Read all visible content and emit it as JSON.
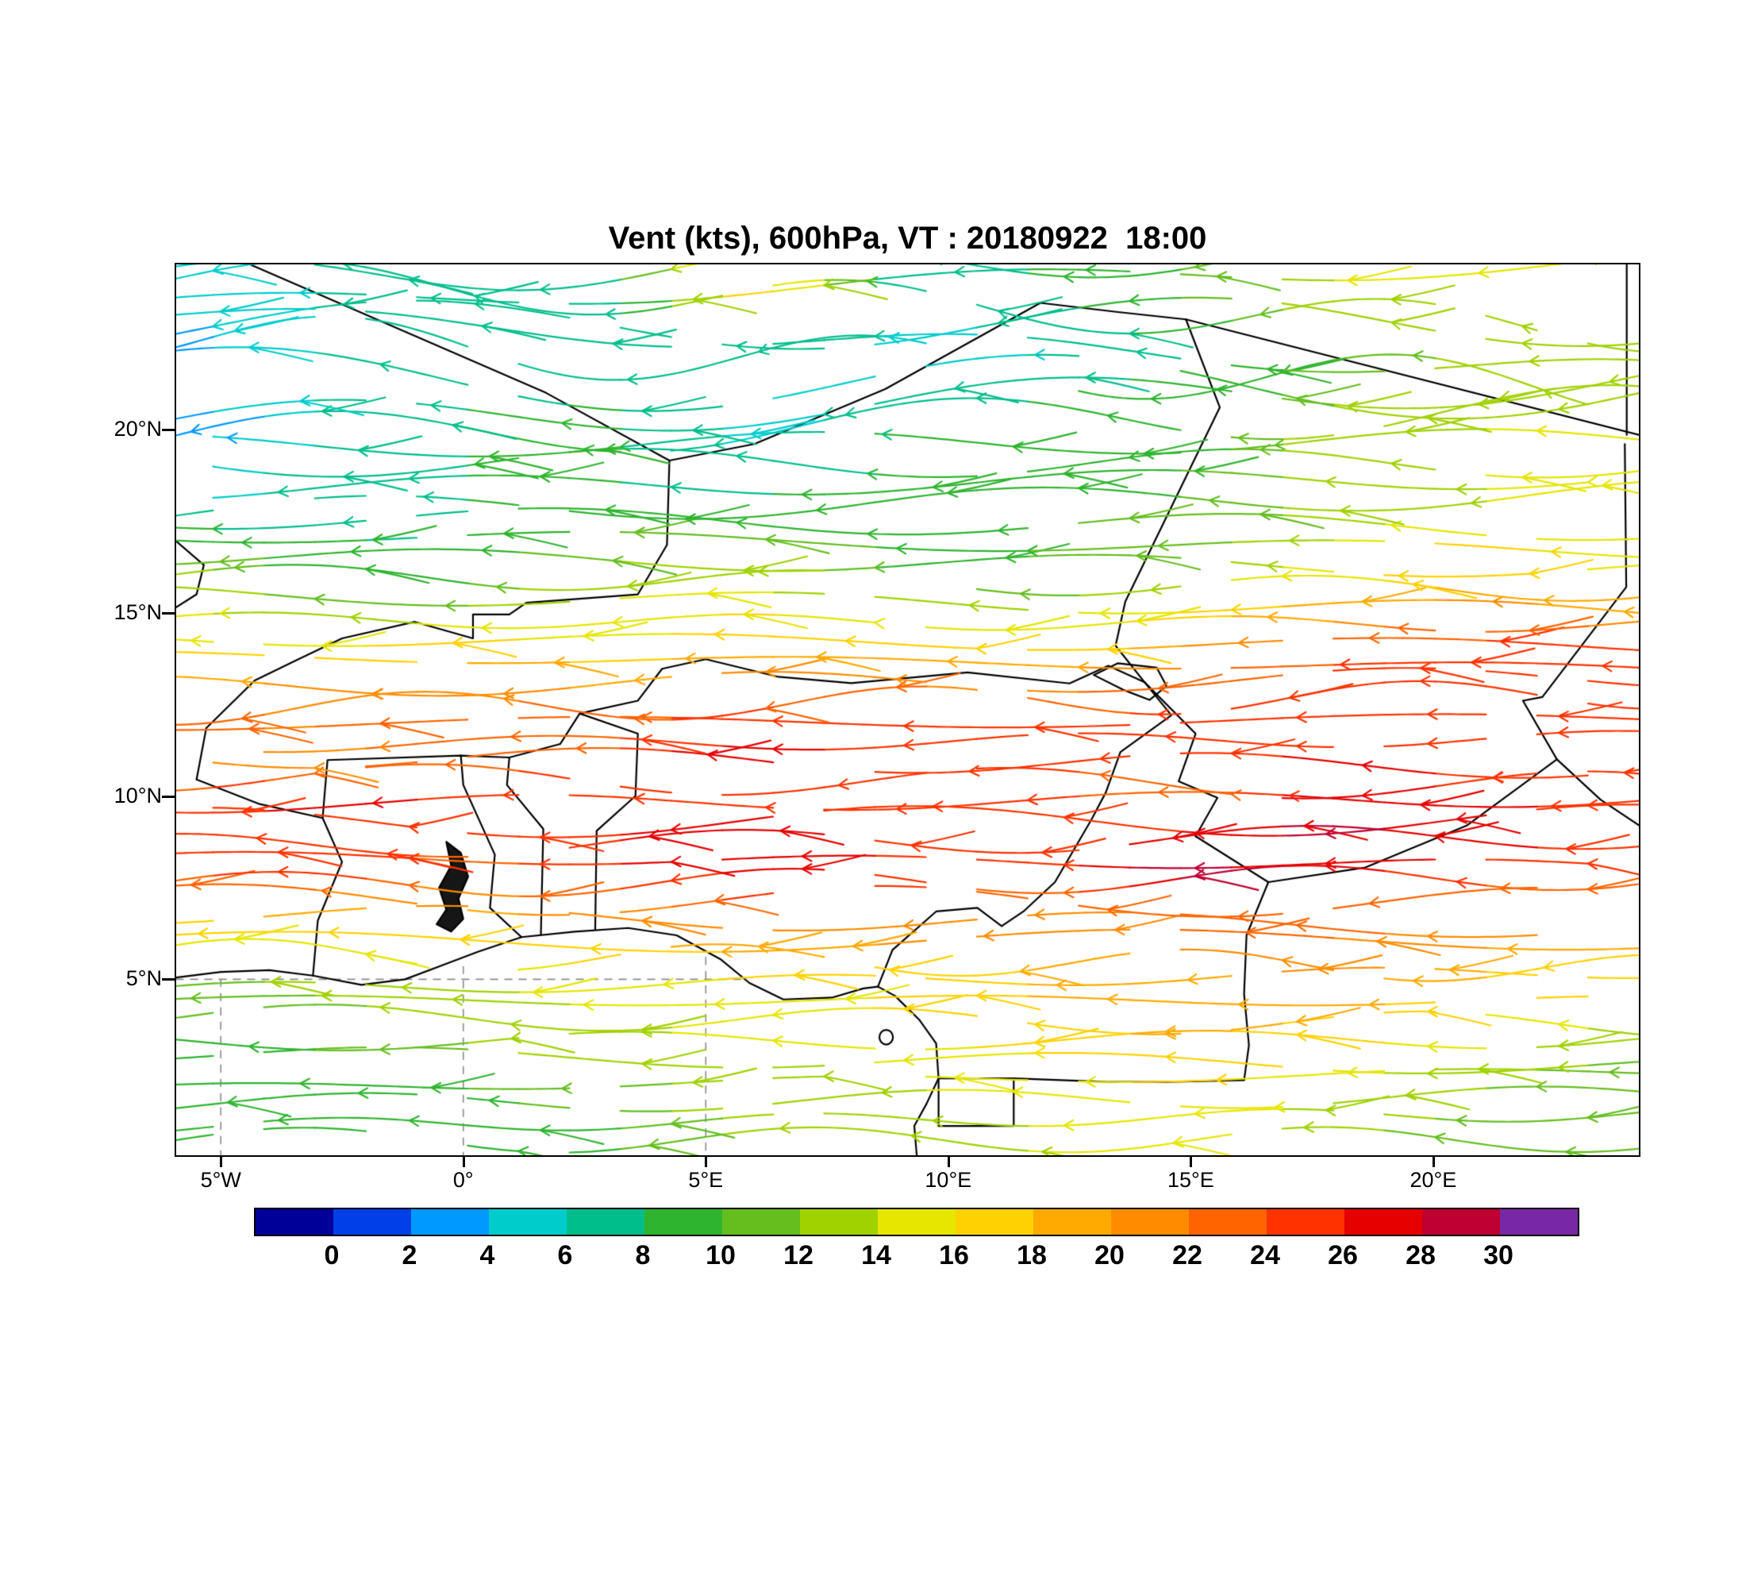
{
  "chart": {
    "title": "Vent (kts), 600hPa, VT : 20180922  18:00"
  },
  "chart_data": {
    "type": "streamline",
    "title": "Vent (kts), 600hPa, VT : 20180922  18:00",
    "variable": "Vent (wind)",
    "units": "kts",
    "pressure_level": "600hPa",
    "valid_time": "20180922 18:00",
    "region": "West Africa",
    "flow_direction": "predominantly easterly; streamline arrowheads point westward",
    "x_axis": {
      "tick_labels": [
        "5°W",
        "0°",
        "5°E",
        "10°E",
        "15°E",
        "20°E"
      ],
      "tick_lons": [
        -5,
        0,
        5,
        10,
        15,
        20
      ],
      "lon_range": [
        -5.92,
        24.24
      ]
    },
    "y_axis": {
      "tick_labels": [
        "20°N",
        "15°N",
        "10°N",
        "5°N"
      ],
      "tick_lats": [
        20,
        15,
        10,
        5
      ],
      "lat_range": [
        0.2,
        24.5
      ]
    },
    "colorbar": {
      "tick_labels": [
        "0",
        "2",
        "4",
        "6",
        "8",
        "10",
        "12",
        "14",
        "16",
        "18",
        "20",
        "22",
        "24",
        "26",
        "28",
        "30"
      ],
      "levels": [
        0,
        2,
        4,
        6,
        8,
        10,
        12,
        14,
        16,
        18,
        20,
        22,
        24,
        26,
        28,
        30
      ],
      "colors": [
        "#000099",
        "#0040E6",
        "#0099FF",
        "#00CCCC",
        "#00BE8C",
        "#2EB42E",
        "#64BE1E",
        "#A0D200",
        "#E6E600",
        "#FFD200",
        "#FFAA00",
        "#FF8C00",
        "#FF6400",
        "#FF3200",
        "#E60000",
        "#BE0032",
        "#7828A4"
      ]
    },
    "wind_field": {
      "grid_lons": [
        -6,
        -3,
        0,
        3,
        6,
        9,
        12,
        15,
        18,
        21,
        24
      ],
      "grid_lats": [
        24,
        22,
        20,
        18,
        16,
        14,
        13,
        12,
        11,
        10,
        9,
        8,
        7,
        6,
        5,
        4,
        3,
        2,
        1
      ],
      "speed_kts": [
        [
          4,
          6,
          8,
          8,
          20,
          6,
          8,
          10,
          14,
          15,
          14
        ],
        [
          3,
          6,
          8,
          6,
          6,
          5,
          6,
          8,
          10,
          13,
          14
        ],
        [
          2,
          6,
          8,
          9,
          5,
          8,
          10,
          9,
          13,
          14,
          14
        ],
        [
          5,
          7,
          8,
          8,
          8,
          9,
          10,
          10,
          13,
          14,
          14
        ],
        [
          14,
          9,
          8,
          13,
          14,
          10,
          10,
          13,
          15,
          18,
          16
        ],
        [
          16,
          15,
          18,
          16,
          18,
          18,
          16,
          20,
          24,
          25,
          24
        ],
        [
          20,
          20,
          21,
          20,
          22,
          22,
          21,
          24,
          25,
          26,
          25
        ],
        [
          23,
          22,
          24,
          24,
          25,
          26,
          25,
          24,
          25,
          26,
          25
        ],
        [
          21,
          20,
          23,
          24,
          28,
          25,
          24,
          24,
          27,
          25,
          24
        ],
        [
          24,
          28,
          25,
          25,
          25,
          24,
          25,
          22,
          27,
          26,
          25
        ],
        [
          26,
          25,
          24,
          26,
          27,
          26,
          25,
          26,
          29,
          27,
          26
        ],
        [
          25,
          26,
          23,
          26,
          27,
          26,
          25,
          29,
          27,
          25,
          24
        ],
        [
          19,
          20,
          20,
          22,
          23,
          22,
          21,
          24,
          24,
          22,
          21
        ],
        [
          15,
          16,
          16,
          18,
          19,
          20,
          20,
          21,
          22,
          20,
          19
        ],
        [
          11,
          13,
          14,
          15,
          16,
          16,
          18,
          19,
          20,
          18,
          16
        ],
        [
          10,
          11,
          13,
          14,
          15,
          16,
          18,
          19,
          18,
          16,
          15
        ],
        [
          9,
          10,
          11,
          13,
          14,
          15,
          16,
          18,
          16,
          14,
          12
        ],
        [
          8,
          9,
          10,
          11,
          13,
          14,
          15,
          16,
          14,
          12,
          10
        ],
        [
          8,
          8,
          9,
          10,
          13,
          13,
          14,
          15,
          13,
          11,
          10
        ]
      ]
    },
    "map": {
      "border_color": "#000000",
      "borders": [
        [
          [
            -4.4,
            24.5
          ],
          [
            1.7,
            21.0
          ],
          [
            4.25,
            19.15
          ]
        ],
        [
          [
            4.25,
            19.15
          ],
          [
            6.0,
            19.6
          ],
          [
            8.7,
            21.1
          ],
          [
            11.9,
            23.45
          ]
        ],
        [
          [
            11.9,
            23.45
          ],
          [
            13.5,
            23.2
          ],
          [
            14.9,
            23.0
          ]
        ],
        [
          [
            14.9,
            23.0
          ],
          [
            24.24,
            19.85
          ]
        ],
        [
          [
            23.95,
            19.6
          ],
          [
            23.98,
            15.7
          ],
          [
            23.0,
            14.0
          ],
          [
            22.25,
            12.7
          ],
          [
            21.85,
            12.6
          ],
          [
            22.55,
            11.0
          ],
          [
            23.45,
            9.9
          ],
          [
            24.24,
            9.2
          ]
        ],
        [
          [
            23.99,
            24.5
          ],
          [
            23.99,
            19.85
          ]
        ],
        [
          [
            14.9,
            23.0
          ],
          [
            15.6,
            20.6
          ],
          [
            13.65,
            15.3
          ],
          [
            13.45,
            14.1
          ],
          [
            14.05,
            13.1
          ]
        ],
        [
          [
            4.25,
            19.15
          ],
          [
            4.2,
            16.85
          ],
          [
            3.6,
            15.5
          ],
          [
            1.3,
            15.27
          ],
          [
            0.95,
            14.95
          ],
          [
            0.2,
            14.95
          ],
          [
            0.2,
            14.3
          ],
          [
            -1.0,
            14.75
          ],
          [
            -2.5,
            14.3
          ],
          [
            -3.45,
            13.7
          ],
          [
            -4.3,
            13.15
          ],
          [
            -5.3,
            11.85
          ],
          [
            -5.5,
            10.45
          ]
        ],
        [
          [
            -5.5,
            10.45
          ],
          [
            -4.2,
            9.78
          ],
          [
            -2.9,
            9.4
          ],
          [
            -2.8,
            10.98
          ],
          [
            -0.05,
            11.1
          ],
          [
            0.95,
            11.05
          ],
          [
            2.0,
            11.42
          ],
          [
            2.4,
            12.25
          ]
        ],
        [
          [
            -3.1,
            5.1
          ],
          [
            -3.0,
            6.6
          ],
          [
            -2.5,
            8.2
          ],
          [
            -2.9,
            9.4
          ]
        ],
        [
          [
            1.2,
            6.15
          ],
          [
            0.55,
            6.95
          ],
          [
            0.65,
            8.4
          ],
          [
            0.0,
            10.3
          ],
          [
            -0.05,
            11.1
          ]
        ],
        [
          [
            1.6,
            6.22
          ],
          [
            1.65,
            9.1
          ],
          [
            0.9,
            10.3
          ],
          [
            0.95,
            11.05
          ]
        ],
        [
          [
            2.72,
            6.37
          ],
          [
            2.75,
            9.05
          ],
          [
            3.55,
            10.0
          ],
          [
            3.6,
            11.7
          ],
          [
            2.4,
            12.25
          ]
        ],
        [
          [
            2.4,
            12.25
          ],
          [
            3.6,
            12.6
          ],
          [
            4.1,
            13.47
          ],
          [
            5.0,
            13.73
          ],
          [
            6.5,
            13.25
          ],
          [
            8.0,
            13.08
          ],
          [
            10.4,
            13.37
          ],
          [
            12.5,
            13.07
          ],
          [
            13.3,
            13.55
          ],
          [
            14.05,
            13.1
          ]
        ],
        [
          [
            14.05,
            13.1
          ],
          [
            14.6,
            12.2
          ],
          [
            13.55,
            11.2
          ],
          [
            13.25,
            10.1
          ],
          [
            12.95,
            9.35
          ],
          [
            12.2,
            7.65
          ],
          [
            11.55,
            6.85
          ],
          [
            11.1,
            6.45
          ],
          [
            10.6,
            6.95
          ],
          [
            9.75,
            6.85
          ],
          [
            8.85,
            5.8
          ],
          [
            8.55,
            4.8
          ]
        ],
        [
          [
            14.05,
            13.1
          ],
          [
            15.1,
            11.7
          ],
          [
            14.75,
            10.4
          ],
          [
            15.55,
            9.95
          ],
          [
            15.1,
            8.9
          ]
        ],
        [
          [
            15.1,
            8.9
          ],
          [
            16.6,
            7.65
          ],
          [
            18.6,
            8.05
          ],
          [
            20.7,
            9.2
          ],
          [
            22.55,
            11.0
          ]
        ],
        [
          [
            16.6,
            7.65
          ],
          [
            16.15,
            6.2
          ],
          [
            16.1,
            4.6
          ],
          [
            16.2,
            3.2
          ],
          [
            16.1,
            2.25
          ]
        ],
        [
          [
            9.8,
            2.3
          ],
          [
            11.35,
            2.3
          ],
          [
            13.3,
            2.2
          ],
          [
            14.5,
            2.2
          ],
          [
            16.1,
            2.25
          ]
        ],
        [
          [
            9.8,
            2.3
          ],
          [
            9.8,
            1.0
          ],
          [
            11.35,
            1.0
          ],
          [
            11.35,
            2.3
          ]
        ],
        [
          [
            -5.92,
            16.95
          ],
          [
            -5.35,
            16.3
          ],
          [
            -5.5,
            15.5
          ],
          [
            -5.92,
            15.15
          ]
        ],
        [
          [
            13.0,
            13.3
          ],
          [
            13.5,
            13.62
          ],
          [
            14.3,
            13.5
          ],
          [
            14.5,
            13.0
          ],
          [
            14.15,
            12.62
          ],
          [
            13.6,
            12.9
          ],
          [
            13.0,
            13.3
          ]
        ],
        [
          [
            -5.92,
            5.05
          ],
          [
            -5.0,
            5.2
          ],
          [
            -4.0,
            5.25
          ],
          [
            -3.1,
            5.1
          ],
          [
            -2.1,
            4.85
          ],
          [
            -1.2,
            5.0
          ],
          [
            -0.5,
            5.35
          ],
          [
            0.3,
            5.75
          ],
          [
            1.2,
            6.15
          ],
          [
            2.3,
            6.3
          ],
          [
            3.4,
            6.4
          ],
          [
            4.4,
            6.2
          ],
          [
            5.3,
            5.55
          ],
          [
            5.9,
            4.9
          ],
          [
            6.6,
            4.45
          ],
          [
            7.6,
            4.5
          ],
          [
            8.25,
            4.75
          ],
          [
            8.55,
            4.8
          ],
          [
            8.9,
            4.55
          ],
          [
            9.4,
            3.9
          ],
          [
            9.75,
            3.25
          ],
          [
            9.8,
            2.3
          ],
          [
            9.55,
            1.6
          ],
          [
            9.3,
            1.0
          ],
          [
            9.35,
            0.2
          ]
        ]
      ],
      "lake_volta": [
        [
          -0.25,
          6.3
        ],
        [
          0.0,
          6.65
        ],
        [
          -0.1,
          7.2
        ],
        [
          0.1,
          7.8
        ],
        [
          -0.05,
          8.45
        ],
        [
          -0.35,
          8.75
        ],
        [
          -0.25,
          8.1
        ],
        [
          -0.5,
          7.5
        ],
        [
          -0.35,
          6.9
        ],
        [
          -0.55,
          6.5
        ],
        [
          -0.25,
          6.3
        ]
      ],
      "bioko_island": {
        "lon": 8.72,
        "lat": 3.42,
        "rx": 0.14,
        "ry": 0.2
      }
    },
    "gridlines": {
      "style": "dashed",
      "color": "#8a8a8a",
      "segments": [
        {
          "type": "v",
          "lon": -5,
          "lat_from": 0.2,
          "lat_to": 5.0
        },
        {
          "type": "v",
          "lon": 0,
          "lat_from": 0.2,
          "lat_to": 5.35
        },
        {
          "type": "v",
          "lon": 5,
          "lat_from": 0.2,
          "lat_to": 5.6
        },
        {
          "type": "h",
          "lat": 5,
          "lon_from": -5.92,
          "lon_to": 5.85
        }
      ]
    }
  }
}
